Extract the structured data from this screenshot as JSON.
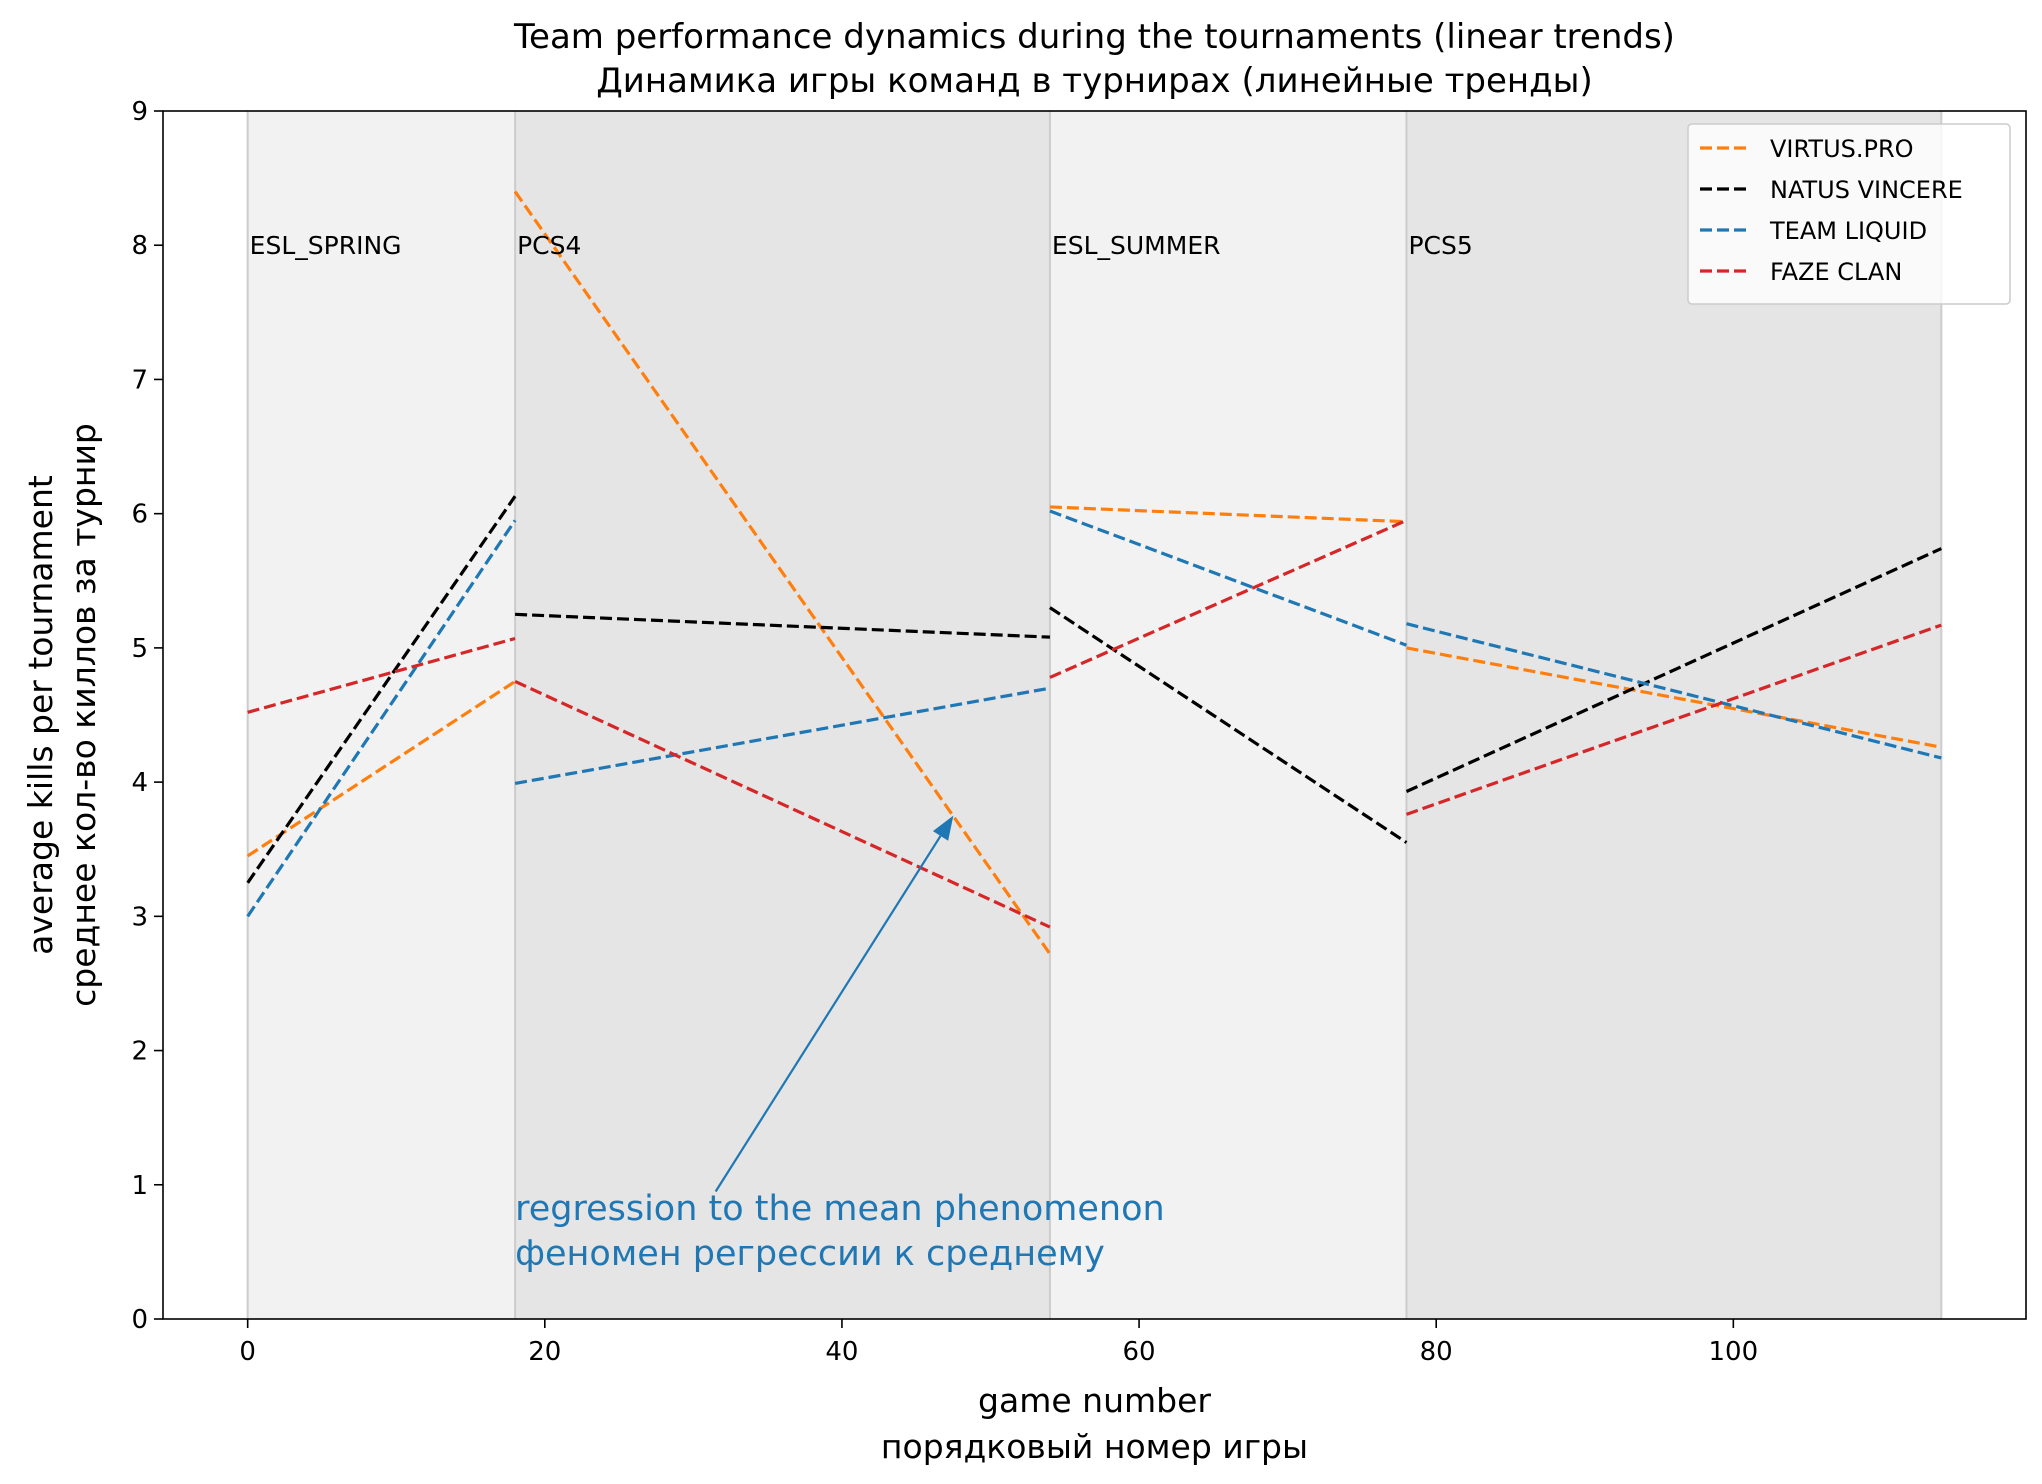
{
  "chart_data": {
    "type": "line",
    "title": [
      "Team performance dynamics during the tournaments (linear trends)",
      "Динамика игры команд в турнирах (линейные тренды)"
    ],
    "xlabel": [
      "game number",
      "порядковый номер игры"
    ],
    "ylabel": [
      "average kills per tournament",
      "среднее кол-во киллов за турнир"
    ],
    "xlim": [
      -5.7,
      119.7
    ],
    "ylim": [
      0,
      9
    ],
    "x_ticks": [
      0,
      20,
      40,
      60,
      80,
      100
    ],
    "y_ticks": [
      0,
      1,
      2,
      3,
      4,
      5,
      6,
      7,
      8,
      9
    ],
    "grid": false,
    "legend_position": "top-right",
    "periods": [
      {
        "name": "ESL_SPRING",
        "start": 0,
        "end": 18,
        "shade": "#f2f2f2"
      },
      {
        "name": "PCS4",
        "start": 18,
        "end": 54,
        "shade": "#e5e5e5"
      },
      {
        "name": "ESL_SUMMER",
        "start": 54,
        "end": 78,
        "shade": "#f2f2f2"
      },
      {
        "name": "PCS5",
        "start": 78,
        "end": 114,
        "shade": "#e5e5e5"
      }
    ],
    "period_label_y": 8.0,
    "series": [
      {
        "name": "VIRTUS.PRO",
        "color": "#ff7f0e",
        "segments": [
          [
            [
              0,
              3.45
            ],
            [
              18,
              4.75
            ]
          ],
          [
            [
              18,
              8.4
            ],
            [
              54,
              2.72
            ]
          ],
          [
            [
              54,
              6.05
            ],
            [
              78,
              5.94
            ]
          ],
          [
            [
              78,
              5.0
            ],
            [
              114,
              4.26
            ]
          ]
        ]
      },
      {
        "name": "NATUS VINCERE",
        "color": "#000000",
        "segments": [
          [
            [
              0,
              3.25
            ],
            [
              18,
              6.13
            ]
          ],
          [
            [
              18,
              5.25
            ],
            [
              54,
              5.08
            ]
          ],
          [
            [
              54,
              5.3
            ],
            [
              78,
              3.55
            ]
          ],
          [
            [
              78,
              3.93
            ],
            [
              114,
              5.74
            ]
          ]
        ]
      },
      {
        "name": "TEAM LIQUID",
        "color": "#1f77b4",
        "segments": [
          [
            [
              0,
              3.0
            ],
            [
              18,
              5.95
            ]
          ],
          [
            [
              18,
              3.99
            ],
            [
              54,
              4.7
            ]
          ],
          [
            [
              54,
              6.02
            ],
            [
              78,
              5.02
            ]
          ],
          [
            [
              78,
              5.18
            ],
            [
              114,
              4.18
            ]
          ]
        ]
      },
      {
        "name": "FAZE CLAN",
        "color": "#d62728",
        "segments": [
          [
            [
              0,
              4.52
            ],
            [
              18,
              5.07
            ]
          ],
          [
            [
              18,
              4.75
            ],
            [
              54,
              2.92
            ]
          ],
          [
            [
              54,
              4.78
            ],
            [
              78,
              5.95
            ]
          ],
          [
            [
              78,
              3.76
            ],
            [
              114,
              5.17
            ]
          ]
        ]
      }
    ],
    "annotation": {
      "text": [
        "regression to the mean phenomenon",
        "феномен регрессии к среднему"
      ],
      "color": "#1f77b4",
      "text_x": 18,
      "text_y": 0.38,
      "arrow_from": [
        31.5,
        0.95
      ],
      "arrow_to": [
        47.5,
        3.75
      ]
    }
  }
}
